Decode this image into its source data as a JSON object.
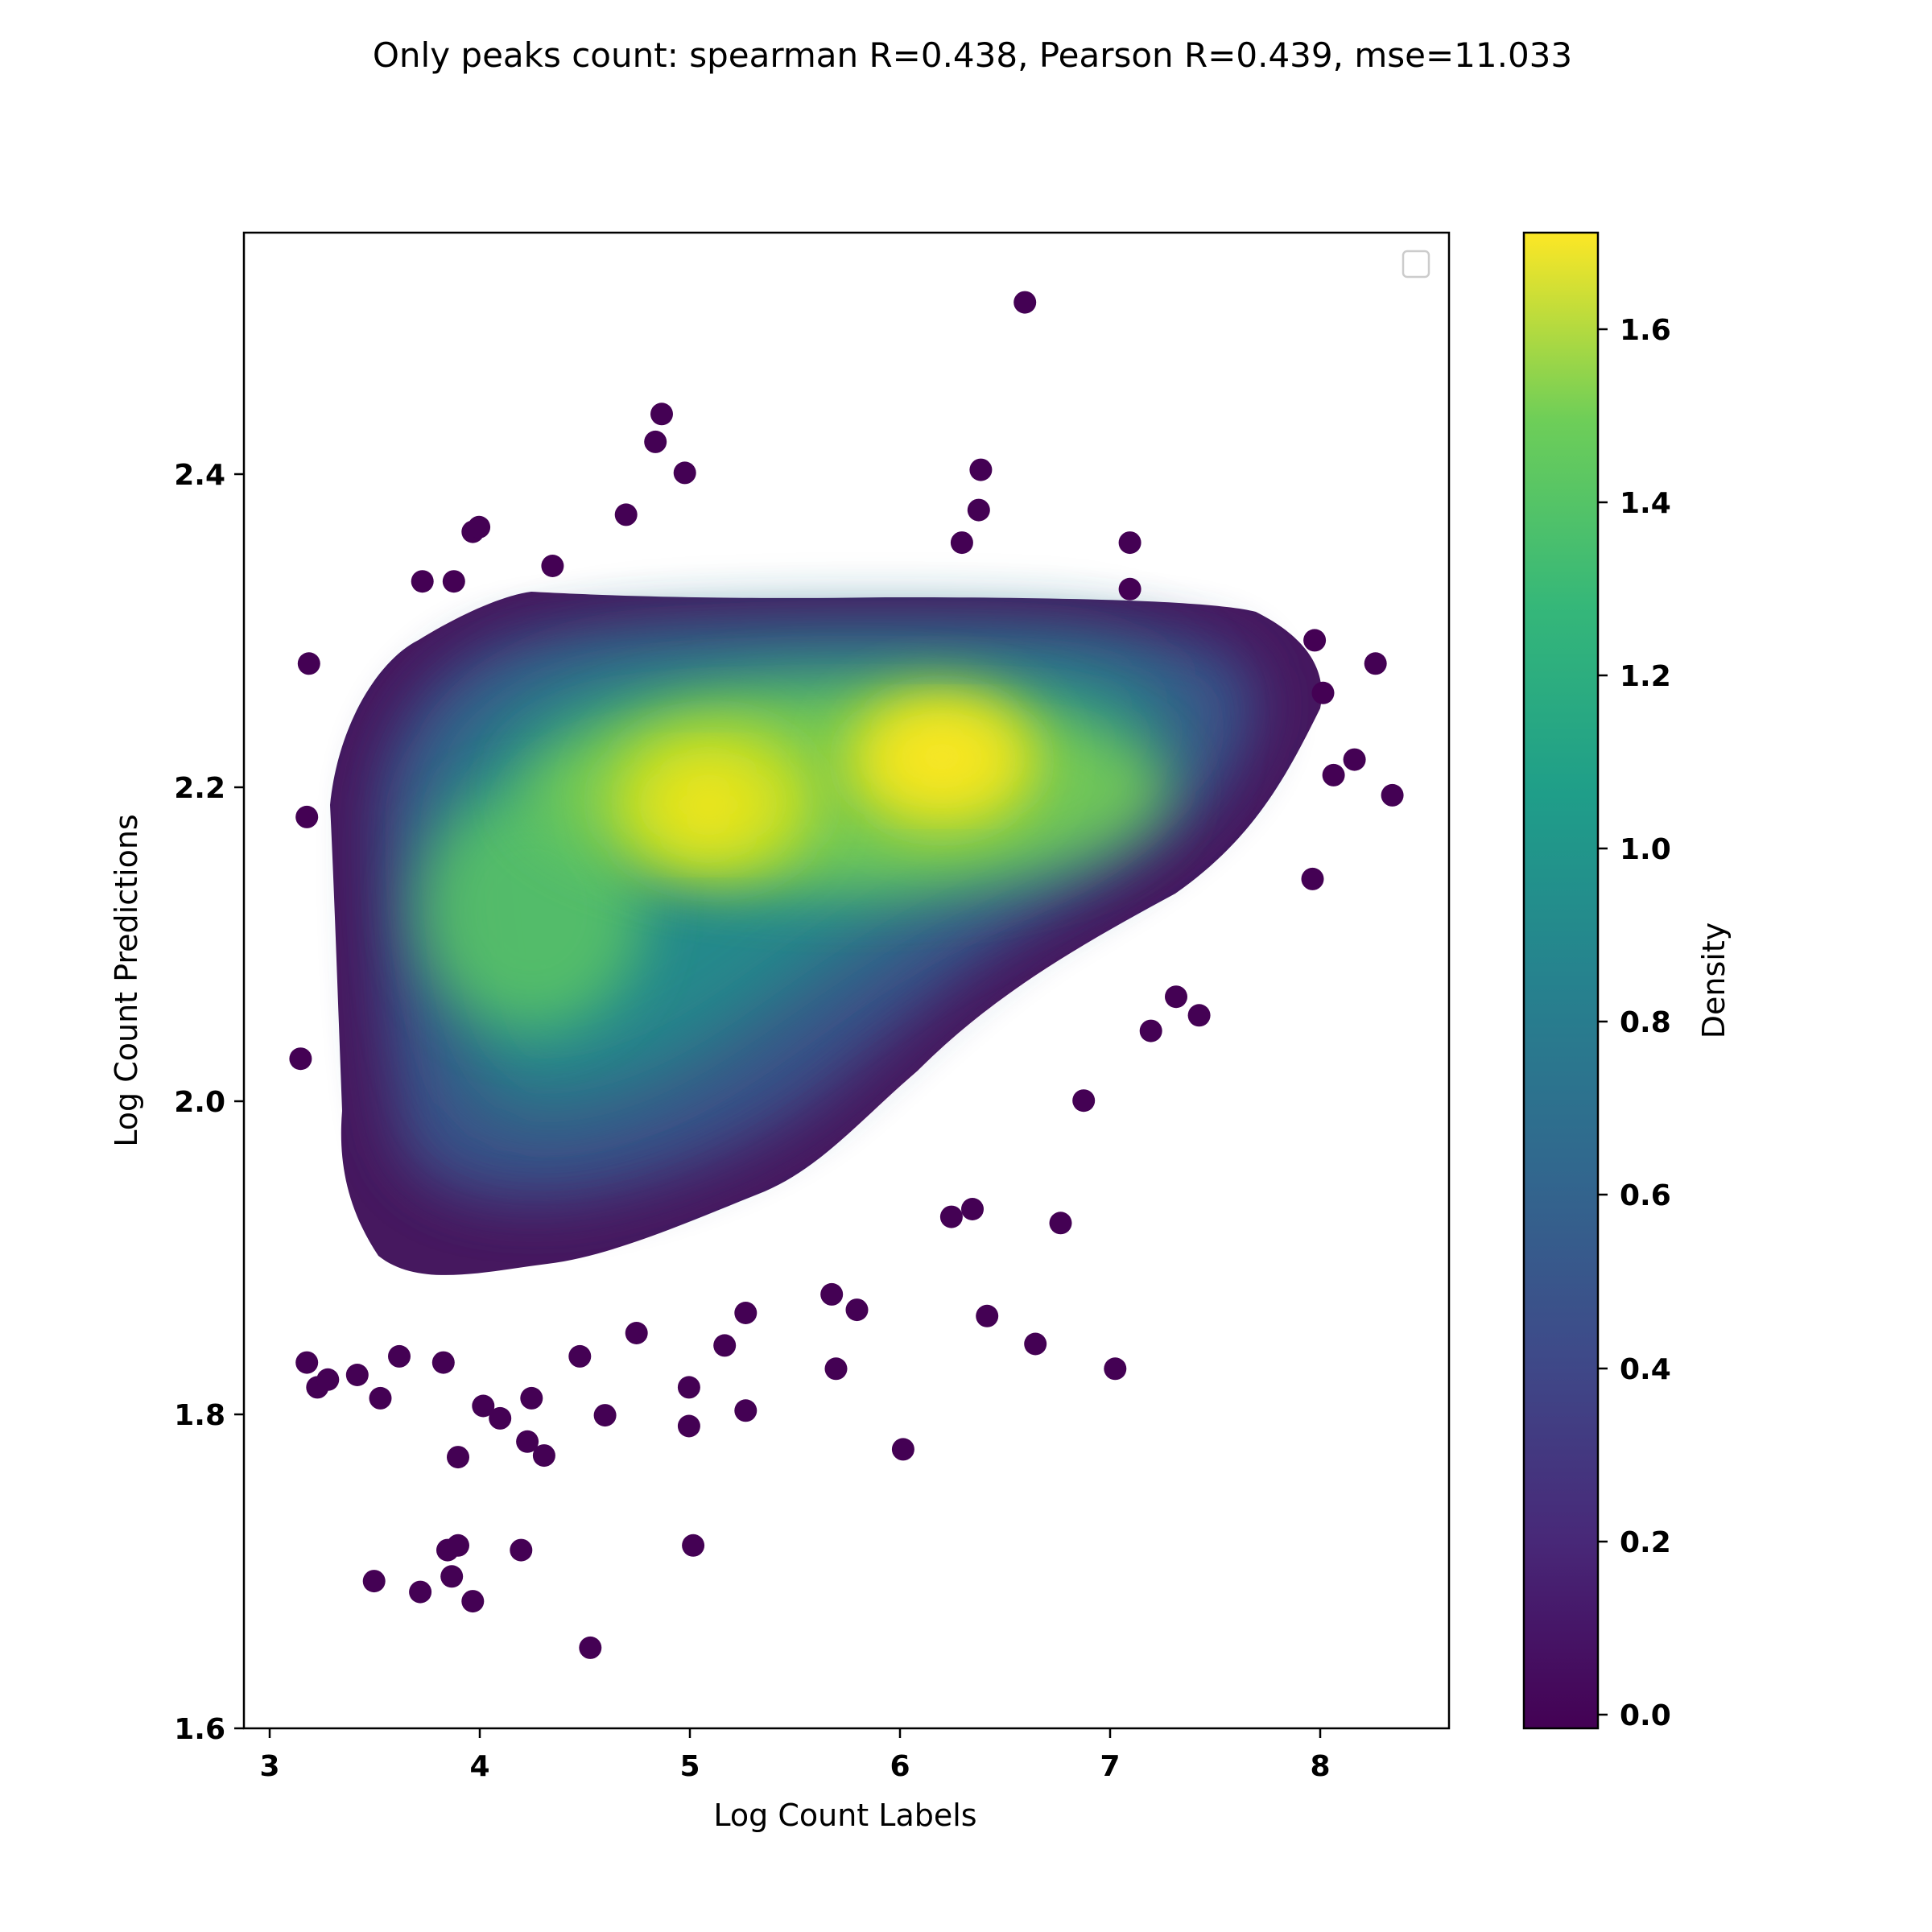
{
  "chart_data": {
    "type": "scatter",
    "title": "Only peaks count: spearman R=0.438, Pearson R=0.439, mse=11.033",
    "xlabel": "Log Count Labels",
    "ylabel": "Log Count Predictions",
    "xlim": [
      2.88,
      8.62
    ],
    "ylim": [
      1.59,
      2.555
    ],
    "xticks": [
      "3",
      "4",
      "5",
      "6",
      "7",
      "8"
    ],
    "yticks": [
      "1.6",
      "1.8",
      "2.0",
      "2.2",
      "2.4"
    ],
    "colorbar": {
      "label": "Density",
      "range": [
        -0.02,
        1.71
      ],
      "ticks": [
        "0.0",
        "0.2",
        "0.4",
        "0.6",
        "0.8",
        "1.0",
        "1.2",
        "1.4",
        "1.6"
      ],
      "colormap": "viridis"
    },
    "legend": {
      "location": "upper right",
      "entries": []
    },
    "grid": false,
    "clusters": [
      {
        "x": 5.2,
        "y": 2.195,
        "density": 1.62
      },
      {
        "x": 6.2,
        "y": 2.225,
        "density": 1.7
      },
      {
        "x": 4.3,
        "y": 2.13,
        "density": 1.35
      },
      {
        "x": 3.9,
        "y": 2.04,
        "density": 1.0
      }
    ],
    "outliers": [
      {
        "x": 6.6,
        "y": 2.51
      },
      {
        "x": 4.87,
        "y": 2.438
      },
      {
        "x": 4.84,
        "y": 2.42
      },
      {
        "x": 4.98,
        "y": 2.4
      },
      {
        "x": 6.39,
        "y": 2.402
      },
      {
        "x": 6.38,
        "y": 2.376
      },
      {
        "x": 4.7,
        "y": 2.373
      },
      {
        "x": 6.3,
        "y": 2.355
      },
      {
        "x": 3.97,
        "y": 2.362
      },
      {
        "x": 4.0,
        "y": 2.365
      },
      {
        "x": 7.1,
        "y": 2.355
      },
      {
        "x": 4.35,
        "y": 2.34
      },
      {
        "x": 3.73,
        "y": 2.33
      },
      {
        "x": 3.88,
        "y": 2.33
      },
      {
        "x": 7.1,
        "y": 2.325
      },
      {
        "x": 8.27,
        "y": 2.277
      },
      {
        "x": 3.19,
        "y": 2.277
      },
      {
        "x": 8.35,
        "y": 2.192
      },
      {
        "x": 3.18,
        "y": 2.178
      },
      {
        "x": 3.15,
        "y": 2.022
      },
      {
        "x": 3.18,
        "y": 1.826
      },
      {
        "x": 3.23,
        "y": 1.81
      },
      {
        "x": 3.28,
        "y": 1.815
      },
      {
        "x": 3.53,
        "y": 1.803
      },
      {
        "x": 4.02,
        "y": 1.798
      },
      {
        "x": 4.1,
        "y": 1.79
      },
      {
        "x": 4.25,
        "y": 1.803
      },
      {
        "x": 4.6,
        "y": 1.792
      },
      {
        "x": 5.0,
        "y": 1.81
      },
      {
        "x": 5.0,
        "y": 1.785
      },
      {
        "x": 5.27,
        "y": 1.795
      },
      {
        "x": 3.9,
        "y": 1.765
      },
      {
        "x": 4.23,
        "y": 1.775
      },
      {
        "x": 4.31,
        "y": 1.766
      },
      {
        "x": 6.02,
        "y": 1.77
      },
      {
        "x": 3.85,
        "y": 1.705
      },
      {
        "x": 3.9,
        "y": 1.708
      },
      {
        "x": 4.2,
        "y": 1.705
      },
      {
        "x": 5.02,
        "y": 1.708
      },
      {
        "x": 3.5,
        "y": 1.685
      },
      {
        "x": 3.72,
        "y": 1.678
      },
      {
        "x": 3.87,
        "y": 1.688
      },
      {
        "x": 3.97,
        "y": 1.672
      },
      {
        "x": 4.53,
        "y": 1.642
      },
      {
        "x": 6.42,
        "y": 1.856
      },
      {
        "x": 6.65,
        "y": 1.838
      },
      {
        "x": 7.03,
        "y": 1.822
      },
      {
        "x": 5.7,
        "y": 1.822
      },
      {
        "x": 5.8,
        "y": 1.86
      },
      {
        "x": 5.68,
        "y": 1.87
      },
      {
        "x": 6.77,
        "y": 1.916
      },
      {
        "x": 6.88,
        "y": 1.995
      },
      {
        "x": 7.43,
        "y": 2.05
      },
      {
        "x": 7.32,
        "y": 2.062
      },
      {
        "x": 7.98,
        "y": 2.292
      },
      {
        "x": 7.97,
        "y": 2.138
      },
      {
        "x": 8.02,
        "y": 2.258
      },
      {
        "x": 8.07,
        "y": 2.205
      },
      {
        "x": 8.17,
        "y": 2.215
      },
      {
        "x": 4.75,
        "y": 1.845
      },
      {
        "x": 5.17,
        "y": 1.837
      },
      {
        "x": 5.27,
        "y": 1.858
      },
      {
        "x": 4.48,
        "y": 1.83
      },
      {
        "x": 3.83,
        "y": 1.826
      },
      {
        "x": 3.42,
        "y": 1.818
      },
      {
        "x": 3.62,
        "y": 1.83
      },
      {
        "x": 6.25,
        "y": 1.92
      },
      {
        "x": 6.35,
        "y": 1.925
      },
      {
        "x": 7.2,
        "y": 2.04
      }
    ]
  }
}
